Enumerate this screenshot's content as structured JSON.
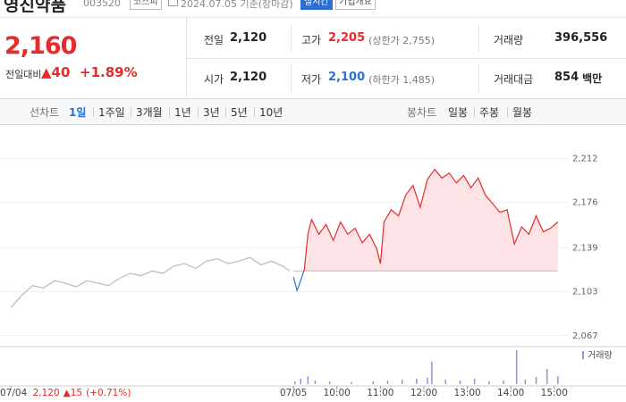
{
  "header": {
    "name": "영진약품",
    "code": "003520",
    "market": "코스피",
    "date": "2024.07.05 기준(장마감)",
    "realtime": "실시간",
    "company_info": "기업개요"
  },
  "price": {
    "current": "2,160",
    "change_label": "전일대비",
    "change": "▲40",
    "change_rate": "+1.89%"
  },
  "summary": [
    [
      {
        "label": "전일",
        "value": "2,120"
      },
      {
        "label": "고가",
        "value": "2,205",
        "note": "(상한가 2,755)",
        "color": "#e52b2b"
      },
      {
        "label": "거래량",
        "value": "396,556"
      }
    ],
    [
      {
        "label": "시가",
        "value": "2,120"
      },
      {
        "label": "저가",
        "value": "2,100",
        "note": "(하한가 1,485)",
        "color": "#2d6fd1"
      },
      {
        "label": "거래대금",
        "value": "854",
        "unit": "백만"
      }
    ]
  ],
  "tabs": {
    "line_label": "선차트",
    "line_periods": [
      "1일",
      "1주일",
      "3개월",
      "1년",
      "3년",
      "5년",
      "10년"
    ],
    "selected_index": 0,
    "candle_label": "봉차트",
    "candle_periods": [
      "일봉",
      "주봉",
      "월봉"
    ]
  },
  "chart_data": {
    "type": "line",
    "xlim": [
      -15,
      770
    ],
    "xticks": [
      {
        "value": 0,
        "label": "07/04"
      },
      {
        "value": 390,
        "label": "07/05"
      },
      {
        "value": 450,
        "label": "10:00"
      },
      {
        "value": 510,
        "label": "11:00"
      },
      {
        "value": 570,
        "label": "12:00"
      },
      {
        "value": 630,
        "label": "13:00"
      },
      {
        "value": 690,
        "label": "14:00"
      },
      {
        "value": 750,
        "label": "15:00"
      }
    ],
    "ylim": [
      2061,
      2232
    ],
    "yticks": [
      {
        "value": 2212,
        "label": "2,212"
      },
      {
        "value": 2176,
        "label": "2,176"
      },
      {
        "value": 2139,
        "label": "2,139"
      },
      {
        "value": 2103,
        "label": "2,103"
      },
      {
        "value": 2067,
        "label": "2,067"
      }
    ],
    "grid": true,
    "baseline": 2120,
    "series": [
      {
        "color": "#b9b9b9",
        "x": [
          0,
          15,
          30,
          45,
          60,
          75,
          90,
          105,
          120,
          135,
          150,
          165,
          180,
          195,
          210,
          225,
          240,
          255,
          270,
          285,
          300,
          315,
          330,
          345,
          360,
          375,
          385
        ],
        "values": [
          2090,
          2100,
          2108,
          2106,
          2112,
          2110,
          2107,
          2112,
          2110,
          2108,
          2114,
          2118,
          2116,
          2120,
          2118,
          2124,
          2126,
          2122,
          2128,
          2130,
          2126,
          2128,
          2131,
          2125,
          2128,
          2124,
          2120
        ]
      },
      {
        "color": "#e52b2b",
        "color_below": "#2d6fd1",
        "fill": "#fde3e5",
        "x": [
          390,
          395,
          400,
          405,
          410,
          415,
          425,
          435,
          445,
          455,
          465,
          475,
          485,
          495,
          505,
          510,
          515,
          525,
          535,
          545,
          555,
          565,
          575,
          585,
          595,
          605,
          615,
          625,
          635,
          645,
          655,
          665,
          675,
          685,
          695,
          705,
          715,
          725,
          735,
          745,
          755
        ],
        "values": [
          2115,
          2104,
          2112,
          2121,
          2150,
          2162,
          2150,
          2158,
          2145,
          2160,
          2150,
          2155,
          2143,
          2150,
          2138,
          2126,
          2160,
          2170,
          2165,
          2182,
          2190,
          2172,
          2195,
          2203,
          2196,
          2200,
          2192,
          2198,
          2188,
          2196,
          2182,
          2175,
          2168,
          2170,
          2142,
          2156,
          2150,
          2165,
          2152,
          2155,
          2160
        ]
      }
    ],
    "prev_day": {
      "close": "2,120",
      "change": "▲15",
      "rate": "(+0.71%)"
    },
    "volume": {
      "name": "거래량",
      "color": "#9a8fd8",
      "vlim": [
        0,
        40000
      ],
      "x": [
        392,
        400,
        410,
        420,
        440,
        470,
        500,
        520,
        540,
        560,
        575,
        581,
        600,
        620,
        640,
        660,
        680,
        698,
        710,
        725,
        740,
        755
      ],
      "values": [
        3000,
        6000,
        9000,
        4000,
        3000,
        2500,
        3000,
        4000,
        5000,
        6000,
        7000,
        25000,
        5000,
        4000,
        6000,
        3000,
        4000,
        38000,
        5000,
        8000,
        17000,
        9000
      ]
    }
  }
}
